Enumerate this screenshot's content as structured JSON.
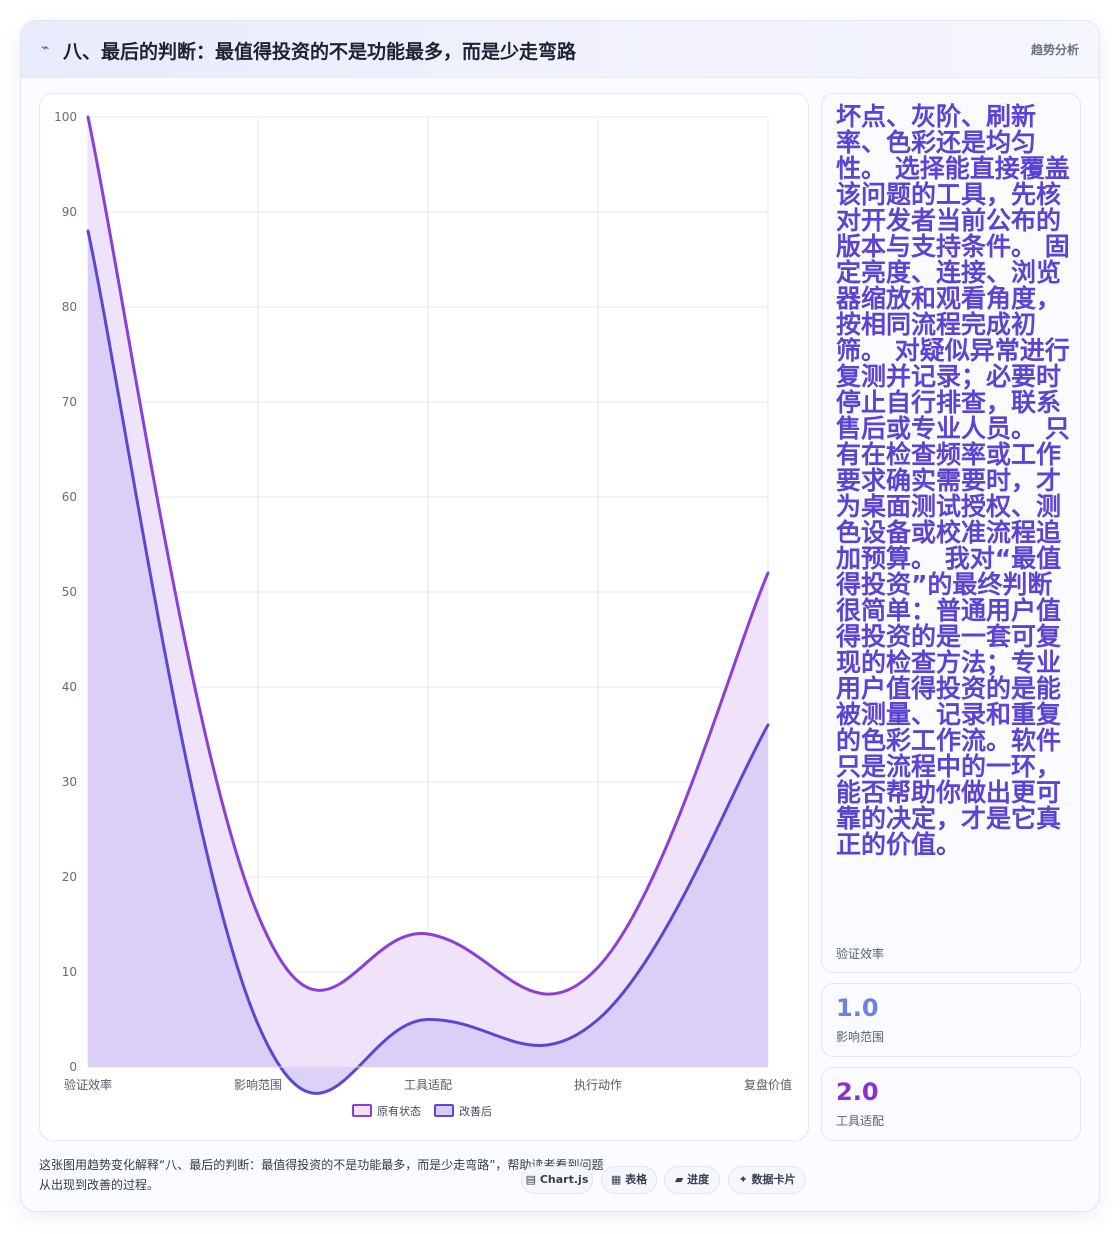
{
  "header": {
    "icon": "trend-line-icon",
    "title": "八、最后的判断：最值得投资的不是功能最多，而是少走弯路",
    "tag": "趋势分析"
  },
  "chart_data": {
    "type": "area",
    "categories": [
      "验证效率",
      "影响范围",
      "工具适配",
      "执行动作",
      "复盘价值"
    ],
    "series": [
      {
        "name": "原有状态",
        "values": [
          100,
          16,
          14,
          10.5,
          52
        ],
        "color": "#8b3fd6",
        "fill": "#efe2fb"
      },
      {
        "name": "改善后",
        "values": [
          88,
          4.5,
          5,
          5,
          36
        ],
        "color": "#5b48d0",
        "fill": "#d8cdf7"
      }
    ],
    "ylim": [
      0,
      100
    ],
    "yticks": [
      0,
      10,
      20,
      30,
      40,
      50,
      60,
      70,
      80,
      90,
      100
    ],
    "grid": true,
    "legend": "bottom",
    "smooth": true
  },
  "side": {
    "big_text": "坏点、灰阶、刷新率、色彩还是均匀性。 选择能直接覆盖该问题的工具，先核对开发者当前公布的版本与支持条件。 固定亮度、连接、浏览器缩放和观看角度，按相同流程完成初筛。 对疑似异常进行复测并记录；必要时停止自行排查，联系售后或专业人员。 只有在检查频率或工作要求确实需要时，才为桌面测试授权、测色设备或校准流程追加预算。 我对“最值得投资”的最终判断很简单：普通用户值得投资的是一套可复现的检查方法；专业用户值得投资的是能被测量、记录和重复的色彩工作流。软件只是流程中的一环，能否帮助你做出更可靠的决定，才是它真正的价值。",
    "big_label": "验证效率",
    "stats": [
      {
        "value": "1.0",
        "label": "影响范围"
      },
      {
        "value": "2.0",
        "label": "工具适配"
      }
    ]
  },
  "footer": {
    "caption": "这张图用趋势变化解释“八、最后的判断：最值得投资的不是功能最多，而是少走弯路”，帮助读者看到问题从出现到改善的过程。",
    "chips": [
      {
        "icon": "chart-icon",
        "glyph": "▤",
        "label": "Chart.js"
      },
      {
        "icon": "table-icon",
        "glyph": "▦",
        "label": "表格"
      },
      {
        "icon": "progress-icon",
        "glyph": "▰",
        "label": "进度"
      },
      {
        "icon": "sparkle-icon",
        "glyph": "✦",
        "label": "数据卡片"
      }
    ]
  }
}
